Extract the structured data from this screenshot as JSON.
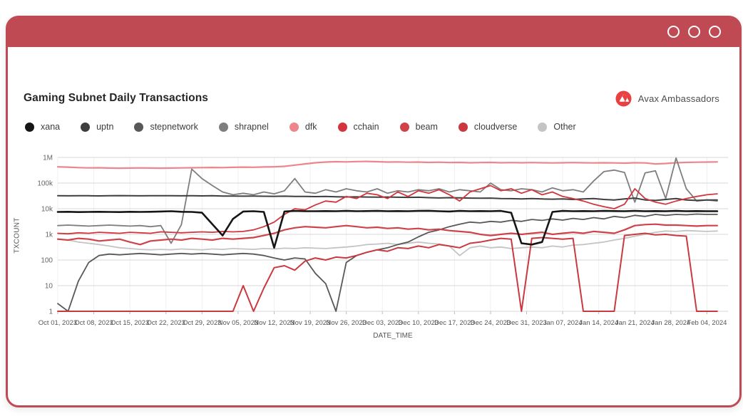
{
  "header": {
    "title": "Gaming Subnet Daily Transactions",
    "brand": "Avax Ambassadors"
  },
  "window": {
    "controls": [
      "circle",
      "circle",
      "circle"
    ]
  },
  "colors": {
    "chrome_red": "#c04a53",
    "brand_logo_red": "#e84142",
    "gridline": "#d7d7d7",
    "tick_text": "#666666"
  },
  "chart_data": {
    "type": "line",
    "title": "Gaming Subnet Daily Transactions",
    "xlabel": "DATE_TIME",
    "ylabel": "TXCOUNT",
    "yscale": "log",
    "ylim": [
      1,
      1000000
    ],
    "grid": true,
    "legend_position": "top",
    "ytick_labels": [
      "1M",
      "100k",
      "10k",
      "1k",
      "100",
      "10",
      "1"
    ],
    "xtick_labels": [
      "Oct 01, 2023",
      "Oct 08, 2023",
      "Oct 15, 2023",
      "Oct 22, 2023",
      "Oct 29, 2023",
      "Nov 05, 2023",
      "Nov 12, 2023",
      "Nov 19, 2023",
      "Nov 26, 2023",
      "Dec 03, 2023",
      "Dec 10, 2023",
      "Dec 17, 2023",
      "Dec 24, 2023",
      "Dec 31, 2023",
      "Jan 07, 2024",
      "Jan 14, 2024",
      "Jan 21, 2024",
      "Jan 28, 2024",
      "Feb 04, 2024"
    ],
    "xtick_interval_days": 7,
    "days_per_point": 2,
    "series": [
      {
        "name": "xana",
        "color": "#161616",
        "width": 2.6,
        "values": [
          7500,
          7600,
          7400,
          7500,
          7600,
          7500,
          7400,
          7600,
          7500,
          7600,
          7800,
          8000,
          7600,
          7500,
          7000,
          2500,
          900,
          4000,
          7800,
          8000,
          7500,
          300,
          7800,
          8200,
          8000,
          8000,
          8100,
          8000,
          8200,
          8000,
          8100,
          8200,
          8000,
          8100,
          8000,
          8200,
          8300,
          8000,
          7800,
          8200,
          8000,
          8100,
          8000,
          8200,
          7000,
          450,
          400,
          500,
          7500,
          8200,
          8000,
          8100,
          8000,
          8200,
          8100,
          8000,
          8200,
          8000,
          8100,
          8000,
          8200,
          8000,
          8100,
          8000,
          8000
        ]
      },
      {
        "name": "uptn",
        "color": "#3e3e3e",
        "width": 2,
        "values": [
          32000,
          31800,
          32200,
          32000,
          31600,
          32000,
          32400,
          32000,
          31800,
          32000,
          32200,
          32000,
          31800,
          32000,
          31600,
          32000,
          31000,
          31200,
          30800,
          31000,
          30600,
          30400,
          30800,
          30200,
          30000,
          29600,
          30000,
          29200,
          28800,
          29000,
          28600,
          28200,
          28600,
          28000,
          27600,
          28000,
          27000,
          26200,
          27000,
          26600,
          26000,
          25600,
          26000,
          25000,
          24600,
          24000,
          25000,
          24000,
          23600,
          24000,
          23000,
          24000,
          25000,
          23000,
          22000,
          24000,
          26000,
          22000,
          21000,
          23000,
          25000,
          22000,
          21000,
          22000,
          22000
        ]
      },
      {
        "name": "stepnetwork",
        "color": "#585858",
        "width": 1.8,
        "values": [
          2,
          1,
          15,
          80,
          150,
          170,
          160,
          170,
          180,
          170,
          160,
          170,
          180,
          170,
          180,
          170,
          160,
          170,
          180,
          170,
          150,
          120,
          100,
          120,
          110,
          30,
          12,
          1,
          80,
          150,
          200,
          250,
          300,
          400,
          500,
          800,
          1200,
          1500,
          2000,
          2500,
          3000,
          2800,
          3200,
          3000,
          3500,
          3200,
          3800,
          3500,
          4000,
          3600,
          4200,
          3800,
          4500,
          4000,
          5000,
          4500,
          5500,
          5000,
          6000,
          5500,
          6000,
          5800,
          6200,
          6000,
          6000
        ]
      },
      {
        "name": "shrapnel",
        "color": "#7e7e7e",
        "width": 1.8,
        "values": [
          2200,
          2300,
          2200,
          2100,
          2200,
          2300,
          2200,
          2100,
          2200,
          2000,
          2200,
          450,
          2400,
          350000,
          150000,
          80000,
          45000,
          35000,
          40000,
          35000,
          45000,
          38000,
          50000,
          150000,
          45000,
          40000,
          55000,
          45000,
          60000,
          50000,
          45000,
          60000,
          40000,
          50000,
          45000,
          55000,
          50000,
          60000,
          45000,
          55000,
          50000,
          45000,
          100000,
          55000,
          50000,
          60000,
          55000,
          45000,
          65000,
          50000,
          55000,
          45000,
          120000,
          280000,
          320000,
          260000,
          18000,
          250000,
          300000,
          25000,
          950000,
          60000,
          20000,
          22000,
          20000
        ]
      },
      {
        "name": "dfk",
        "color": "#ee858a",
        "width": 2.2,
        "values": [
          430000,
          420000,
          400000,
          390000,
          395000,
          385000,
          380000,
          385000,
          390000,
          385000,
          380000,
          385000,
          390000,
          395000,
          400000,
          405000,
          400000,
          410000,
          420000,
          415000,
          425000,
          430000,
          450000,
          500000,
          560000,
          620000,
          660000,
          680000,
          670000,
          690000,
          700000,
          680000,
          660000,
          670000,
          650000,
          660000,
          640000,
          650000,
          630000,
          640000,
          620000,
          630000,
          640000,
          620000,
          630000,
          620000,
          630000,
          620000,
          610000,
          620000,
          630000,
          620000,
          610000,
          620000,
          610000,
          600000,
          620000,
          610000,
          560000,
          580000,
          620000,
          640000,
          650000,
          660000,
          670000
        ]
      },
      {
        "name": "cchain",
        "color": "#d2353c",
        "width": 1.8,
        "values": [
          1100,
          1050,
          1150,
          1100,
          1200,
          1150,
          1100,
          1200,
          1150,
          1100,
          1250,
          1200,
          1150,
          1200,
          1250,
          1200,
          1300,
          1250,
          1300,
          1500,
          2000,
          3000,
          6000,
          10000,
          9000,
          14000,
          20000,
          18000,
          30000,
          25000,
          40000,
          35000,
          25000,
          45000,
          30000,
          50000,
          40000,
          55000,
          35000,
          20000,
          45000,
          60000,
          80000,
          50000,
          60000,
          40000,
          55000,
          35000,
          45000,
          30000,
          25000,
          20000,
          15000,
          12000,
          10000,
          15000,
          60000,
          25000,
          18000,
          15000,
          20000,
          25000,
          30000,
          35000,
          38000
        ]
      },
      {
        "name": "beam",
        "color": "#d0424a",
        "width": 2.2,
        "values": [
          650,
          600,
          700,
          650,
          550,
          600,
          650,
          500,
          400,
          550,
          600,
          650,
          600,
          700,
          650,
          600,
          700,
          650,
          700,
          750,
          900,
          1100,
          1500,
          1800,
          2000,
          1900,
          1800,
          2000,
          2200,
          2000,
          1800,
          1900,
          1700,
          1800,
          1600,
          1700,
          1500,
          1600,
          1400,
          1300,
          1200,
          1000,
          900,
          1000,
          1100,
          1000,
          1100,
          1200,
          1000,
          1100,
          1200,
          1100,
          1300,
          1200,
          1100,
          1500,
          2200,
          2400,
          2500,
          2300,
          2300,
          2200,
          2100,
          2200,
          2200
        ]
      },
      {
        "name": "cloudverse",
        "color": "#c9393f",
        "width": 2,
        "values": [
          1,
          1,
          1,
          1,
          1,
          1,
          1,
          1,
          1,
          1,
          1,
          1,
          1,
          1,
          1,
          1,
          1,
          1,
          10,
          1,
          8,
          50,
          60,
          40,
          90,
          120,
          100,
          130,
          120,
          150,
          200,
          250,
          220,
          300,
          280,
          350,
          300,
          400,
          350,
          300,
          450,
          500,
          600,
          700,
          650,
          1,
          700,
          750,
          700,
          650,
          700,
          1,
          1,
          1,
          1,
          900,
          1000,
          1100,
          950,
          1000,
          900,
          850,
          1,
          1,
          1
        ]
      },
      {
        "name": "Other",
        "color": "#c4c4c4",
        "width": 1.8,
        "values": [
          650,
          600,
          500,
          450,
          400,
          350,
          300,
          280,
          260,
          250,
          260,
          250,
          270,
          260,
          250,
          270,
          260,
          280,
          270,
          260,
          280,
          270,
          290,
          280,
          300,
          290,
          280,
          300,
          320,
          350,
          400,
          420,
          450,
          400,
          450,
          500,
          450,
          420,
          350,
          150,
          300,
          350,
          300,
          320,
          280,
          300,
          320,
          300,
          350,
          320,
          380,
          400,
          450,
          500,
          600,
          700,
          850,
          1000,
          1200,
          1350,
          1300,
          1400,
          1350,
          1300,
          1350
        ]
      }
    ]
  }
}
